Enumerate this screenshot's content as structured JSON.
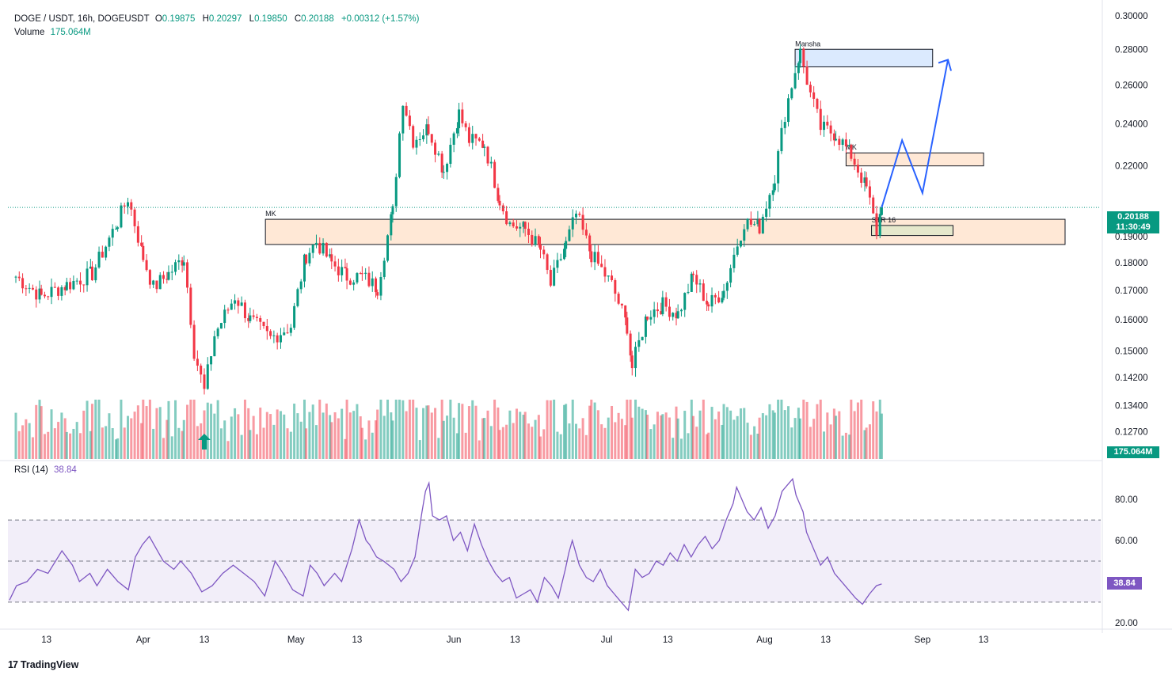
{
  "header": {
    "symbol": "DOGE / USDT, 16h, DOGEUSDT",
    "open_label": "O",
    "open": "0.19875",
    "high_label": "H",
    "high": "0.20297",
    "low_label": "L",
    "low": "0.19850",
    "close_label": "C",
    "close": "0.20188",
    "change": "+0.00312 (+1.57%)",
    "volume_label": "Volume",
    "volume": "175.064M"
  },
  "rsi": {
    "label": "RSI (14)",
    "value": "38.84",
    "value_num": 38.84
  },
  "last_price": {
    "value": "0.20188",
    "countdown": "11:30:49"
  },
  "volume_tag": "175.064M",
  "brand": {
    "mark": "17",
    "name": "TradingView"
  },
  "colors": {
    "up": "#089981",
    "down": "#f23645",
    "rsi": "#7e57c2",
    "projection": "#2962ff"
  },
  "chart_data": [
    {
      "type": "candlestick",
      "title": "DOGE / USDT, 16h",
      "y_ticks": [
        "0.30000",
        "0.28000",
        "0.26000",
        "0.24000",
        "0.22000",
        "0.20188",
        "0.19000",
        "0.18000",
        "0.17000",
        "0.16000",
        "0.15000",
        "0.14200",
        "0.13400",
        "0.12700"
      ],
      "ylim": [
        0.12,
        0.305
      ],
      "y_scale": "log",
      "x_ticks": [
        "13",
        "Apr",
        "13",
        "May",
        "13",
        "Jun",
        "13",
        "Jul",
        "13",
        "Aug",
        "13",
        "Sep",
        "13"
      ],
      "anchor_closes": [
        [
          "2024-03-07",
          0.175
        ],
        [
          "2024-03-12",
          0.168
        ],
        [
          "2024-03-17",
          0.172
        ],
        [
          "2024-03-22",
          0.176
        ],
        [
          "2024-03-27",
          0.196
        ],
        [
          "2024-03-29",
          0.206
        ],
        [
          "2024-04-01",
          0.182
        ],
        [
          "2024-04-03",
          0.171
        ],
        [
          "2024-04-06",
          0.176
        ],
        [
          "2024-04-09",
          0.182
        ],
        [
          "2024-04-11",
          0.15
        ],
        [
          "2024-04-13",
          0.138
        ],
        [
          "2024-04-15",
          0.155
        ],
        [
          "2024-04-19",
          0.168
        ],
        [
          "2024-04-22",
          0.16
        ],
        [
          "2024-04-26",
          0.154
        ],
        [
          "2024-04-30",
          0.158
        ],
        [
          "2024-05-03",
          0.183
        ],
        [
          "2024-05-05",
          0.188
        ],
        [
          "2024-05-08",
          0.18
        ],
        [
          "2024-05-11",
          0.175
        ],
        [
          "2024-05-14",
          0.175
        ],
        [
          "2024-05-17",
          0.171
        ],
        [
          "2024-05-20",
          0.2
        ],
        [
          "2024-05-22",
          0.253
        ],
        [
          "2024-05-24",
          0.232
        ],
        [
          "2024-05-27",
          0.238
        ],
        [
          "2024-05-30",
          0.218
        ],
        [
          "2024-06-02",
          0.245
        ],
        [
          "2024-06-04",
          0.232
        ],
        [
          "2024-06-07",
          0.23
        ],
        [
          "2024-06-10",
          0.205
        ],
        [
          "2024-06-12",
          0.195
        ],
        [
          "2024-06-15",
          0.193
        ],
        [
          "2024-06-18",
          0.185
        ],
        [
          "2024-06-20",
          0.172
        ],
        [
          "2024-06-23",
          0.187
        ],
        [
          "2024-06-25",
          0.199
        ],
        [
          "2024-06-28",
          0.183
        ],
        [
          "2024-07-02",
          0.172
        ],
        [
          "2024-07-05",
          0.158
        ],
        [
          "2024-07-06",
          0.145
        ],
        [
          "2024-07-09",
          0.162
        ],
        [
          "2024-07-12",
          0.165
        ],
        [
          "2024-07-15",
          0.162
        ],
        [
          "2024-07-18",
          0.175
        ],
        [
          "2024-07-21",
          0.165
        ],
        [
          "2024-07-24",
          0.17
        ],
        [
          "2024-07-28",
          0.196
        ],
        [
          "2024-07-31",
          0.194
        ],
        [
          "2024-08-03",
          0.215
        ],
        [
          "2024-08-05",
          0.245
        ],
        [
          "2024-08-07",
          0.268
        ],
        [
          "2024-08-08",
          0.278
        ],
        [
          "2024-08-10",
          0.255
        ],
        [
          "2024-08-12",
          0.238
        ],
        [
          "2024-08-15",
          0.235
        ],
        [
          "2024-08-18",
          0.225
        ],
        [
          "2024-08-21",
          0.21
        ],
        [
          "2024-08-23",
          0.192
        ],
        [
          "2024-08-24",
          0.2019
        ]
      ],
      "last": {
        "open": 0.19875,
        "high": 0.20297,
        "low": 0.1985,
        "close": 0.20188
      },
      "last_price_line": 0.20188
    },
    {
      "type": "bar",
      "title": "Volume",
      "last_value": "175.064M"
    },
    {
      "type": "line",
      "title": "RSI (14)",
      "y_ticks": [
        "80.00",
        "60.00",
        "20.00"
      ],
      "ylim": [
        18,
        92
      ],
      "band": [
        30,
        70
      ],
      "midline": 50,
      "anchor_points": [
        [
          0,
          31
        ],
        [
          4,
          38
        ],
        [
          10,
          40
        ],
        [
          16,
          46
        ],
        [
          22,
          44
        ],
        [
          30,
          55
        ],
        [
          36,
          48
        ],
        [
          40,
          40
        ],
        [
          46,
          44
        ],
        [
          50,
          38
        ],
        [
          56,
          46
        ],
        [
          62,
          40
        ],
        [
          68,
          36
        ],
        [
          72,
          52
        ],
        [
          76,
          58
        ],
        [
          80,
          62
        ],
        [
          84,
          56
        ],
        [
          88,
          50
        ],
        [
          94,
          46
        ],
        [
          98,
          50
        ],
        [
          104,
          44
        ],
        [
          110,
          35
        ],
        [
          116,
          38
        ],
        [
          122,
          44
        ],
        [
          128,
          48
        ],
        [
          134,
          44
        ],
        [
          140,
          40
        ],
        [
          146,
          33
        ],
        [
          152,
          50
        ],
        [
          158,
          42
        ],
        [
          162,
          36
        ],
        [
          168,
          33
        ],
        [
          172,
          48
        ],
        [
          176,
          44
        ],
        [
          180,
          38
        ],
        [
          186,
          44
        ],
        [
          190,
          40
        ],
        [
          196,
          56
        ],
        [
          200,
          70
        ],
        [
          204,
          60
        ],
        [
          206,
          58
        ],
        [
          210,
          52
        ],
        [
          214,
          50
        ],
        [
          220,
          46
        ],
        [
          224,
          40
        ],
        [
          228,
          44
        ],
        [
          232,
          52
        ],
        [
          236,
          74
        ],
        [
          238,
          84
        ],
        [
          240,
          88
        ],
        [
          242,
          72
        ],
        [
          246,
          70
        ],
        [
          250,
          72
        ],
        [
          254,
          60
        ],
        [
          258,
          64
        ],
        [
          262,
          55
        ],
        [
          266,
          68
        ],
        [
          270,
          58
        ],
        [
          274,
          50
        ],
        [
          278,
          44
        ],
        [
          282,
          40
        ],
        [
          286,
          42
        ],
        [
          290,
          32
        ],
        [
          294,
          34
        ],
        [
          298,
          36
        ],
        [
          302,
          30
        ],
        [
          306,
          42
        ],
        [
          310,
          38
        ],
        [
          314,
          32
        ],
        [
          318,
          46
        ],
        [
          320,
          54
        ],
        [
          322,
          60
        ],
        [
          326,
          48
        ],
        [
          330,
          42
        ],
        [
          334,
          40
        ],
        [
          338,
          46
        ],
        [
          342,
          38
        ],
        [
          346,
          34
        ],
        [
          350,
          30
        ],
        [
          354,
          26
        ],
        [
          358,
          46
        ],
        [
          362,
          42
        ],
        [
          366,
          44
        ],
        [
          370,
          50
        ],
        [
          374,
          48
        ],
        [
          378,
          54
        ],
        [
          382,
          50
        ],
        [
          386,
          58
        ],
        [
          390,
          52
        ],
        [
          394,
          58
        ],
        [
          398,
          62
        ],
        [
          402,
          56
        ],
        [
          406,
          60
        ],
        [
          410,
          70
        ],
        [
          414,
          78
        ],
        [
          416,
          86
        ],
        [
          418,
          82
        ],
        [
          422,
          74
        ],
        [
          426,
          70
        ],
        [
          430,
          76
        ],
        [
          434,
          66
        ],
        [
          438,
          72
        ],
        [
          442,
          84
        ],
        [
          446,
          88
        ],
        [
          448,
          90
        ],
        [
          450,
          82
        ],
        [
          454,
          74
        ],
        [
          456,
          64
        ],
        [
          460,
          56
        ],
        [
          464,
          48
        ],
        [
          468,
          52
        ],
        [
          472,
          44
        ],
        [
          476,
          40
        ],
        [
          480,
          36
        ],
        [
          484,
          32
        ],
        [
          488,
          29
        ],
        [
          492,
          34
        ],
        [
          496,
          38
        ],
        [
          499,
          38.84
        ]
      ]
    }
  ],
  "annotations": {
    "zones": [
      {
        "label": "MK",
        "top": 0.197,
        "bottom": 0.187,
        "from": "2024-04-25",
        "to": "2024-09-29",
        "fill": "#ffe8d6"
      },
      {
        "label": "Mansha",
        "top": 0.28,
        "bottom": 0.27,
        "from": "2024-08-07",
        "to": "2024-09-03",
        "fill": "#dbeafe"
      },
      {
        "label": "MK",
        "top": 0.226,
        "bottom": 0.22,
        "from": "2024-08-17",
        "to": "2024-09-13",
        "fill": "#ffe8d6"
      },
      {
        "label": "STR 16",
        "top": 0.1945,
        "bottom": 0.1905,
        "from": "2024-08-22",
        "to": "2024-09-07",
        "fill": "#e6e8cc"
      }
    ],
    "projection": [
      [
        "2024-08-24",
        0.2019
      ],
      [
        "2024-08-28",
        0.232
      ],
      [
        "2024-09-01",
        0.208
      ],
      [
        "2024-09-06",
        0.274
      ],
      [
        "2024-09-07",
        0.27
      ]
    ]
  }
}
